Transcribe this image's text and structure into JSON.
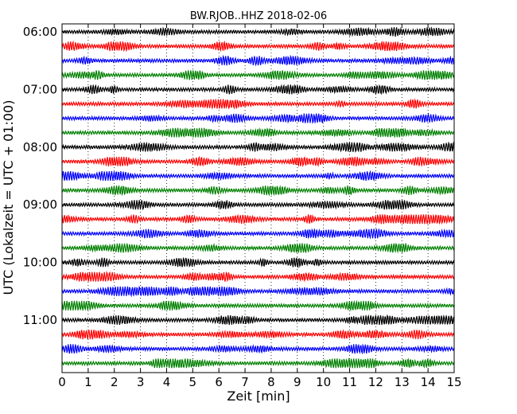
{
  "chart_data": {
    "type": "line",
    "title": "BW.RJOB..HHZ 2018-02-06",
    "xlabel": "Zeit  [min]",
    "ylabel": "UTC (Lokalzeit = UTC + 01:00)",
    "xlim": [
      0,
      15
    ],
    "x_ticks": [
      "0",
      "1",
      "2",
      "3",
      "4",
      "5",
      "6",
      "7",
      "8",
      "9",
      "10",
      "11",
      "12",
      "13",
      "14",
      "15"
    ],
    "y_tick_labels": [
      "06:00",
      "07:00",
      "08:00",
      "09:00",
      "10:00",
      "11:00"
    ],
    "trace_start_times": [
      "06:00",
      "06:15",
      "06:30",
      "06:45",
      "07:00",
      "07:15",
      "07:30",
      "07:45",
      "08:00",
      "08:15",
      "08:30",
      "08:45",
      "09:00",
      "09:15",
      "09:30",
      "09:45",
      "10:00",
      "10:15",
      "10:30",
      "10:45",
      "11:00",
      "11:15",
      "11:30",
      "11:45"
    ],
    "trace_minutes_per_line": 15,
    "trace_color_cycle": [
      "#000000",
      "#ff0000",
      "#0000ff",
      "#008000"
    ],
    "grid": "vertical dotted",
    "legend": "none"
  }
}
